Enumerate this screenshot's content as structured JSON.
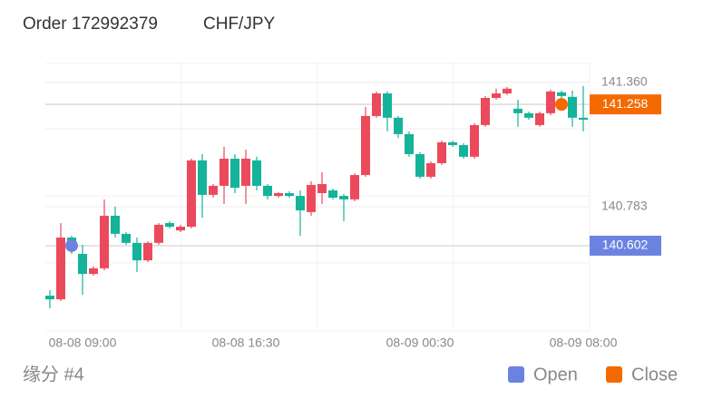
{
  "chart_data": {
    "type": "candlestick",
    "title": "Order 172992379",
    "subtitle": "CHF/JPY",
    "footer": "缘分 #4",
    "categories": [
      null,
      null,
      null,
      "08-08 09:00",
      null,
      null,
      null,
      null,
      null,
      null,
      null,
      null,
      null,
      null,
      null,
      null,
      null,
      null,
      "08-08 16:30",
      null,
      null,
      null,
      null,
      null,
      null,
      null,
      null,
      null,
      null,
      null,
      null,
      null,
      null,
      null,
      "08-09 00:30",
      null,
      null,
      null,
      null,
      null,
      null,
      null,
      null,
      null,
      null,
      null,
      null,
      null,
      null,
      "08-09 08:00"
    ],
    "open": [
      140.37,
      140.353,
      140.64,
      140.564,
      140.471,
      140.497,
      140.741,
      140.657,
      140.615,
      140.534,
      140.615,
      140.707,
      140.673,
      140.69,
      140.998,
      140.838,
      140.88,
      141.006,
      140.88,
      140.998,
      140.88,
      140.833,
      140.846,
      140.833,
      140.758,
      140.846,
      140.859,
      140.833,
      140.817,
      140.93,
      141.204,
      141.309,
      141.196,
      141.12,
      141.027,
      140.922,
      140.985,
      141.082,
      141.069,
      141.015,
      141.162,
      141.288,
      141.309,
      141.238,
      141.217,
      141.162,
      141.217,
      141.314,
      141.293,
      141.196
    ],
    "high": [
      140.396,
      140.707,
      140.648,
      140.606,
      140.506,
      140.817,
      140.783,
      140.665,
      140.64,
      140.623,
      140.707,
      140.716,
      140.699,
      141.006,
      141.027,
      140.888,
      141.061,
      141.027,
      141.048,
      141.015,
      140.888,
      140.85,
      140.855,
      140.859,
      140.901,
      140.943,
      140.867,
      140.842,
      140.938,
      141.246,
      141.318,
      141.318,
      141.204,
      141.133,
      141.036,
      140.994,
      141.09,
      141.09,
      141.078,
      141.171,
      141.297,
      141.331,
      141.339,
      141.28,
      141.225,
      141.225,
      141.326,
      141.322,
      141.322,
      141.343
    ],
    "low": [
      140.311,
      140.345,
      140.564,
      140.374,
      140.463,
      140.488,
      140.64,
      140.606,
      140.48,
      140.526,
      140.606,
      140.682,
      140.665,
      140.682,
      140.732,
      140.825,
      140.796,
      140.846,
      140.796,
      140.859,
      140.817,
      140.825,
      140.825,
      140.648,
      140.741,
      140.796,
      140.817,
      140.716,
      140.808,
      140.922,
      141.196,
      141.133,
      141.103,
      141.015,
      140.913,
      140.913,
      140.977,
      141.061,
      141.006,
      141.006,
      141.154,
      141.28,
      141.301,
      141.154,
      141.187,
      141.154,
      141.208,
      141.288,
      141.154,
      141.133
    ],
    "close": [
      140.353,
      140.64,
      140.585,
      140.471,
      140.497,
      140.741,
      140.657,
      140.615,
      140.534,
      140.615,
      140.699,
      140.69,
      140.69,
      140.998,
      140.838,
      140.88,
      141.006,
      140.871,
      141.006,
      140.88,
      140.833,
      140.846,
      140.833,
      140.766,
      140.884,
      140.888,
      140.825,
      140.817,
      140.93,
      141.204,
      141.309,
      141.196,
      141.12,
      141.027,
      140.922,
      140.985,
      141.082,
      141.069,
      141.015,
      141.162,
      141.288,
      141.309,
      141.331,
      141.217,
      141.196,
      141.217,
      141.318,
      141.297,
      141.196,
      141.187
    ],
    "up_color": "#eb4a5c",
    "down_color": "#14b39a",
    "ylim": [
      140.206,
      141.448
    ],
    "yticks": [
      {
        "value": 141.36,
        "label": "141.360"
      },
      140.783
    ],
    "markers": [
      {
        "name": "Open",
        "color": "#6b83e0",
        "value": 140.602,
        "index": 2
      },
      {
        "name": "Close",
        "color": "#f56a00",
        "value": 141.258,
        "index": 47
      }
    ],
    "grid": true
  }
}
